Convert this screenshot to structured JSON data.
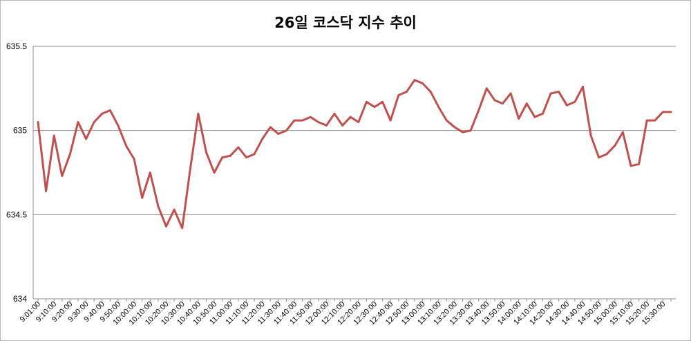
{
  "chart_data": {
    "type": "line",
    "title": "26일 코스닥 지수 추이",
    "xlabel": "",
    "ylabel": "",
    "ylim": [
      634,
      635.5
    ],
    "yticks": [
      634,
      634.5,
      635,
      635.5
    ],
    "ytick_labels": [
      "634",
      "634.5",
      "635",
      "635.5"
    ],
    "grid": true,
    "legend": "none",
    "series_color": "#c0504d",
    "grid_color": "#8c8c8c",
    "x": [
      "9:01:00",
      "9:05:00",
      "9:10:00",
      "9:15:00",
      "9:20:00",
      "9:25:00",
      "9:30:00",
      "9:35:00",
      "9:40:00",
      "9:45:00",
      "9:50:00",
      "9:55:00",
      "10:00:00",
      "10:05:00",
      "10:10:00",
      "10:15:00",
      "10:20:00",
      "10:25:00",
      "10:30:00",
      "10:35:00",
      "10:40:00",
      "10:45:00",
      "10:50:00",
      "10:55:00",
      "11:00:00",
      "11:05:00",
      "11:10:00",
      "11:15:00",
      "11:20:00",
      "11:25:00",
      "11:30:00",
      "11:35:00",
      "11:40:00",
      "11:45:00",
      "11:50:00",
      "11:55:00",
      "12:00:00",
      "12:05:00",
      "12:10:00",
      "12:15:00",
      "12:20:00",
      "12:25:00",
      "12:30:00",
      "12:35:00",
      "12:40:00",
      "12:45:00",
      "12:50:00",
      "12:55:00",
      "13:00:00",
      "13:05:00",
      "13:10:00",
      "13:15:00",
      "13:20:00",
      "13:25:00",
      "13:30:00",
      "13:35:00",
      "13:40:00",
      "13:45:00",
      "13:50:00",
      "13:55:00",
      "14:00:00",
      "14:05:00",
      "14:10:00",
      "14:15:00",
      "14:20:00",
      "14:25:00",
      "14:30:00",
      "14:35:00",
      "14:40:00",
      "14:45:00",
      "14:50:00",
      "14:55:00",
      "15:00:00",
      "15:05:00",
      "15:10:00",
      "15:15:00",
      "15:20:00",
      "15:25:00",
      "15:30:00",
      "15:35:00"
    ],
    "xtick_labels": [
      "9:01:00",
      "9:10:00",
      "9:20:00",
      "9:30:00",
      "9:40:00",
      "9:50:00",
      "10:00:00",
      "10:10:00",
      "10:20:00",
      "10:30:00",
      "10:40:00",
      "10:50:00",
      "11:00:00",
      "11:10:00",
      "11:20:00",
      "11:30:00",
      "11:40:00",
      "11:50:00",
      "12:00:00",
      "12:10:00",
      "12:20:00",
      "12:30:00",
      "12:40:00",
      "12:50:00",
      "13:00:00",
      "13:10:00",
      "13:20:00",
      "13:30:00",
      "13:40:00",
      "13:50:00",
      "14:00:00",
      "14:10:00",
      "14:20:00",
      "14:30:00",
      "14:40:00",
      "14:50:00",
      "15:00:00",
      "15:10:00",
      "15:20:00",
      "15:30:00"
    ],
    "values": [
      635.05,
      634.64,
      634.97,
      634.73,
      634.86,
      635.05,
      634.95,
      635.05,
      635.1,
      635.12,
      635.03,
      634.91,
      634.83,
      634.6,
      634.75,
      634.55,
      634.43,
      634.53,
      634.42,
      634.77,
      635.1,
      634.87,
      634.75,
      634.84,
      634.85,
      634.9,
      634.84,
      634.86,
      634.95,
      635.02,
      634.98,
      635.0,
      635.06,
      635.06,
      635.08,
      635.05,
      635.03,
      635.1,
      635.03,
      635.08,
      635.05,
      635.17,
      635.14,
      635.17,
      635.06,
      635.21,
      635.23,
      635.3,
      635.28,
      635.23,
      635.14,
      635.06,
      635.02,
      634.99,
      635.0,
      635.12,
      635.25,
      635.18,
      635.16,
      635.22,
      635.07,
      635.16,
      635.08,
      635.1,
      635.22,
      635.23,
      635.15,
      635.17,
      635.26,
      634.97,
      634.84,
      634.86,
      634.91,
      634.99,
      634.79,
      634.8,
      635.06,
      635.06,
      635.11,
      635.11
    ]
  }
}
